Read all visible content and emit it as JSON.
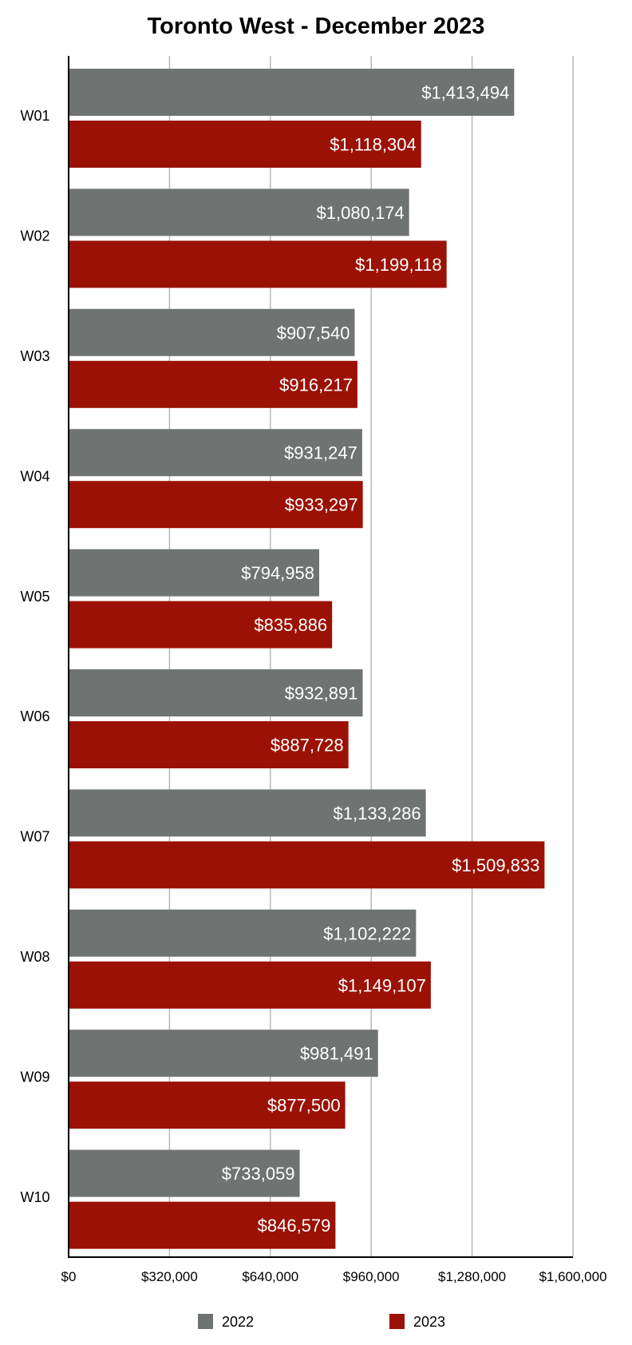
{
  "chart_data": {
    "type": "bar",
    "orientation": "horizontal",
    "title": "Toronto West - December 2023",
    "categories": [
      "W01",
      "W02",
      "W03",
      "W04",
      "W05",
      "W06",
      "W07",
      "W08",
      "W09",
      "W10"
    ],
    "series": [
      {
        "name": "2022",
        "color": "#6f7472",
        "values": [
          1413494,
          1080174,
          907540,
          931247,
          794958,
          932891,
          1133286,
          1102222,
          981491,
          733059
        ],
        "labels": [
          "$1,413,494",
          "$1,080,174",
          "$907,540",
          "$931,247",
          "$794,958",
          "$932,891",
          "$1,133,286",
          "$1,102,222",
          "$981,491",
          "$733,059"
        ]
      },
      {
        "name": "2023",
        "color": "#9b1105",
        "values": [
          1118304,
          1199118,
          916217,
          933297,
          835886,
          887728,
          1509833,
          1149107,
          877500,
          846579
        ],
        "labels": [
          "$1,118,304",
          "$1,199,118",
          "$916,217",
          "$933,297",
          "$835,886",
          "$887,728",
          "$1,509,833",
          "$1,149,107",
          "$877,500",
          "$846,579"
        ]
      }
    ],
    "xlim": [
      0,
      1600000
    ],
    "xticks": [
      0,
      320000,
      640000,
      960000,
      1280000,
      1600000
    ],
    "xtick_labels": [
      "$0",
      "$320,000",
      "$640,000",
      "$960,000",
      "$1,280,000",
      "$1,600,000"
    ],
    "grid": true,
    "legend_position": "bottom"
  }
}
